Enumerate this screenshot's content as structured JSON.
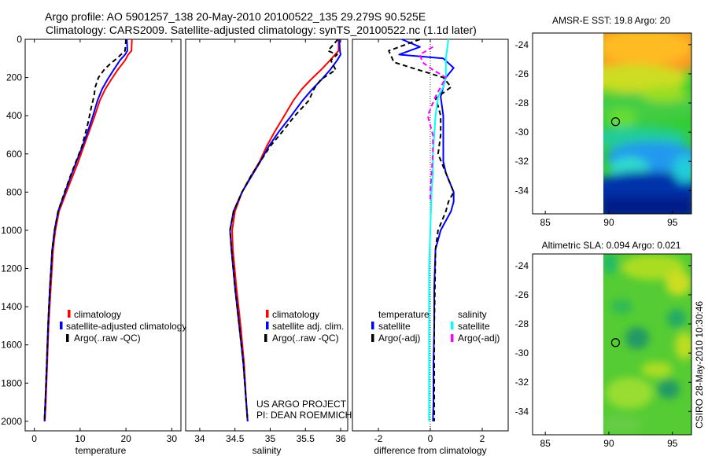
{
  "title_line1": "Argo profile: AO 5901257_138 20-May-2010 20100522_135 29.279S 90.525E",
  "title_line2": "Climatology: CARS2009. Satellite-adjusted climatology: synTS_20100522.nc (1.1d later)",
  "project_line1": "US ARGO PROJECT",
  "project_line2": "PI: DEAN ROEMMICH",
  "watermark": "CSIRO 28-May-2010 10:30:46",
  "colors": {
    "climatology": "#ff0000",
    "satellite": "#0000ff",
    "argo": "#000000",
    "salinity_satellite": "#00ffff",
    "salinity_argo": "#ff00ff"
  },
  "chart_data": [
    {
      "type": "line",
      "id": "temperature",
      "xlabel": "temperature",
      "xlim": [
        -2,
        32
      ],
      "ylim": [
        2050,
        0
      ],
      "xticks": [
        0,
        10,
        20,
        30
      ],
      "yticks": [
        0,
        200,
        400,
        600,
        800,
        1000,
        1200,
        1400,
        1600,
        1800,
        2000
      ],
      "legend": [
        "climatology",
        "satellite-adjusted climatology",
        "Argo(..raw -QC)"
      ],
      "series": [
        {
          "name": "climatology",
          "style": "solid",
          "color": "#ff0000",
          "x": [
            21.3,
            21.2,
            20.5,
            19.8,
            18.2,
            16.8,
            15.5,
            14.3,
            13.2,
            12.0,
            10.8,
            9.6,
            8.3,
            7.0,
            5.4,
            4.6,
            4.1,
            3.6,
            3.1,
            2.8,
            2.5,
            2.3
          ],
          "y": [
            0,
            60,
            80,
            110,
            160,
            210,
            260,
            320,
            400,
            480,
            560,
            640,
            720,
            800,
            900,
            1000,
            1100,
            1300,
            1500,
            1700,
            1900,
            2000
          ]
        },
        {
          "name": "satellite-adjusted climatology",
          "style": "solid",
          "color": "#0000ff",
          "x": [
            20.2,
            20.3,
            19.8,
            18.7,
            17.3,
            16.0,
            14.8,
            13.8,
            12.8,
            11.7,
            10.5,
            9.2,
            7.9,
            6.7,
            5.2,
            4.4,
            3.9,
            3.4,
            3.0,
            2.7,
            2.4,
            2.2
          ],
          "y": [
            0,
            60,
            80,
            110,
            160,
            210,
            260,
            320,
            400,
            480,
            560,
            640,
            720,
            800,
            900,
            1000,
            1100,
            1300,
            1500,
            1700,
            1900,
            2000
          ]
        },
        {
          "name": "Argo(..raw -QC)",
          "style": "dashed",
          "color": "#000000",
          "x": [
            20.0,
            19.8,
            18.0,
            16.5,
            15.2,
            14.0,
            13.3,
            13.0,
            12.5,
            11.6,
            10.4,
            9.1,
            7.8,
            6.6,
            5.2,
            4.4,
            3.9,
            3.4,
            3.0,
            2.7,
            2.4,
            2.2
          ],
          "y": [
            0,
            60,
            100,
            130,
            160,
            200,
            250,
            300,
            350,
            450,
            560,
            640,
            720,
            800,
            900,
            1000,
            1100,
            1300,
            1500,
            1700,
            1900,
            2000
          ]
        }
      ]
    },
    {
      "type": "line",
      "id": "salinity",
      "xlabel": "salinity",
      "xlim": [
        33.8,
        36.1
      ],
      "ylim": [
        2050,
        0
      ],
      "xticks": [
        34,
        34.5,
        35,
        35.5,
        36
      ],
      "legend": [
        "climatology",
        "satellite adj. clim.",
        "Argo(..raw -QC)"
      ],
      "series": [
        {
          "name": "climatology",
          "style": "solid",
          "color": "#ff0000",
          "x": [
            35.97,
            35.97,
            35.92,
            35.85,
            35.72,
            35.58,
            35.45,
            35.33,
            35.2,
            35.07,
            34.95,
            34.85,
            34.72,
            34.6,
            34.5,
            34.46,
            34.47,
            34.52,
            34.58,
            34.63,
            34.66,
            34.68
          ],
          "y": [
            0,
            60,
            80,
            110,
            160,
            210,
            260,
            320,
            400,
            480,
            560,
            640,
            720,
            800,
            900,
            1000,
            1100,
            1300,
            1500,
            1700,
            1900,
            2000
          ]
        },
        {
          "name": "satellite adj. clim.",
          "style": "solid",
          "color": "#0000ff",
          "x": [
            35.98,
            35.99,
            36.0,
            35.95,
            35.85,
            35.73,
            35.6,
            35.46,
            35.3,
            35.13,
            34.98,
            34.86,
            34.73,
            34.6,
            34.48,
            34.43,
            34.45,
            34.5,
            34.56,
            34.62,
            34.66,
            34.68
          ],
          "y": [
            0,
            60,
            80,
            110,
            160,
            210,
            260,
            320,
            400,
            480,
            560,
            640,
            720,
            800,
            900,
            1000,
            1100,
            1300,
            1500,
            1700,
            1900,
            2000
          ]
        },
        {
          "name": "Argo(..raw -QC)",
          "style": "dashed",
          "color": "#000000",
          "x": [
            35.96,
            35.82,
            35.95,
            35.86,
            35.93,
            35.72,
            35.62,
            35.55,
            35.35,
            35.18,
            35.0,
            34.86,
            34.72,
            34.6,
            34.48,
            34.43,
            34.45,
            34.5,
            34.56,
            34.62,
            34.66,
            34.68
          ],
          "y": [
            0,
            60,
            80,
            110,
            160,
            210,
            260,
            320,
            400,
            480,
            560,
            640,
            720,
            800,
            900,
            1000,
            1100,
            1300,
            1500,
            1700,
            1900,
            2000
          ]
        }
      ]
    },
    {
      "type": "line",
      "id": "difference",
      "xlabel": "difference from climatology",
      "xlim": [
        -3,
        3
      ],
      "ylim": [
        2050,
        0
      ],
      "xticks": [
        -2,
        0,
        2
      ],
      "legend_headers": [
        "temperature",
        "salinity"
      ],
      "legend": [
        "satellite",
        "Argo(-adj)",
        "satellite",
        "Argo(-adj)"
      ],
      "series": [
        {
          "name": "temperature satellite",
          "style": "solid",
          "color": "#0000ff",
          "x": [
            -1.1,
            -0.4,
            -1.2,
            0.5,
            0.9,
            0.6,
            0.4,
            0.5,
            0.5,
            0.5,
            0.5,
            0.6,
            0.9,
            0.9,
            0.8,
            0.4,
            0.2,
            0.15,
            0.15,
            0.12,
            0.12,
            0.1
          ],
          "y": [
            0,
            40,
            80,
            100,
            150,
            200,
            300,
            400,
            500,
            600,
            640,
            700,
            800,
            850,
            900,
            1000,
            1100,
            1300,
            1500,
            1700,
            1900,
            2000
          ]
        },
        {
          "name": "temperature Argo(-adj)",
          "style": "dashed",
          "color": "#000000",
          "x": [
            -0.4,
            -1.6,
            -1.4,
            -0.7,
            0.5,
            0.8,
            0.2,
            0.3,
            0.4,
            0.4,
            0.3,
            0.6,
            0.9,
            0.7,
            0.6,
            0.3,
            0.2,
            0.18,
            0.15,
            0.15,
            0.15,
            0.15
          ],
          "y": [
            0,
            60,
            120,
            150,
            200,
            250,
            310,
            350,
            400,
            500,
            600,
            700,
            800,
            850,
            900,
            1000,
            1100,
            1300,
            1500,
            1700,
            1900,
            2000
          ]
        },
        {
          "name": "salinity satellite",
          "style": "solid",
          "color": "#00ffff",
          "x": [
            0.7,
            0.6,
            0.6,
            0.5,
            0.3,
            0.2,
            0.15,
            0.1,
            0.1,
            0.05,
            0.0,
            -0.05,
            -0.05,
            -0.05,
            -0.05
          ],
          "y": [
            0,
            100,
            200,
            250,
            300,
            400,
            500,
            600,
            700,
            800,
            1000,
            1200,
            1500,
            1800,
            2000
          ]
        },
        {
          "name": "salinity Argo(-adj)",
          "style": "dashed",
          "color": "#ff00ff",
          "x": [
            0.1,
            -0.4,
            -0.3,
            0.1,
            0.6,
            0.2,
            -0.1,
            0.1,
            0.1,
            0.05,
            0.0,
            0.0
          ],
          "y": [
            40,
            80,
            120,
            160,
            200,
            300,
            400,
            500,
            600,
            700,
            800,
            850
          ]
        }
      ]
    },
    {
      "type": "heatmap",
      "id": "sst_map",
      "title": "AMSR-E SST: 19.8 Argo: 20",
      "xticks": [
        85,
        90,
        95
      ],
      "yticks": [
        -24,
        -26,
        -28,
        -30,
        -32,
        -34
      ],
      "xlim": [
        84,
        96.5
      ],
      "ylim": [
        -35.6,
        -23.2
      ],
      "marker": {
        "lon": 90.525,
        "lat": -29.279
      }
    },
    {
      "type": "heatmap",
      "id": "sla_map",
      "title": "Altimetric SLA: 0.094 Argo: 0.021",
      "xticks": [
        85,
        90,
        95
      ],
      "yticks": [
        -24,
        -26,
        -28,
        -30,
        -32,
        -34
      ],
      "xlim": [
        84,
        96.5
      ],
      "ylim": [
        -35.6,
        -23.2
      ],
      "marker": {
        "lon": 90.525,
        "lat": -29.279
      }
    }
  ]
}
